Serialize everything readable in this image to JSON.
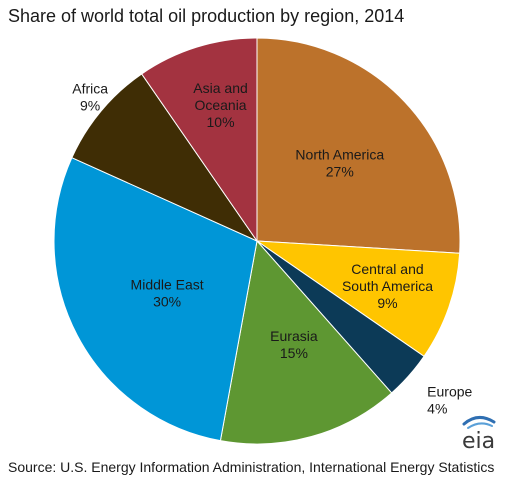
{
  "title": "Share of world total oil production by region, 2014",
  "source": "Source: U.S. Energy Information Administration, International Energy Statistics",
  "logo": {
    "text": "eia",
    "icon": "eia-logo-icon"
  },
  "chart_data": {
    "type": "pie",
    "title": "Share of world total oil production by region, 2014",
    "unit": "%",
    "start": "12 o'clock",
    "direction": "clockwise",
    "slices": [
      {
        "label": [
          "North America"
        ],
        "value": 27,
        "value_label": "27%",
        "color": "#BC722B"
      },
      {
        "label": [
          "Central and",
          "South America"
        ],
        "value": 9,
        "value_label": "9%",
        "color": "#FFC500"
      },
      {
        "label": [
          "Europe"
        ],
        "value": 4,
        "value_label": "4%",
        "color": "#0C3A57"
      },
      {
        "label": [
          "Eurasia"
        ],
        "value": 15,
        "value_label": "15%",
        "color": "#5E9732"
      },
      {
        "label": [
          "Middle East"
        ],
        "value": 30,
        "value_label": "30%",
        "color": "#0096D7"
      },
      {
        "label": [
          "Africa"
        ],
        "value": 9,
        "value_label": "9%",
        "color": "#3F2D05"
      },
      {
        "label": [
          "Asia and",
          "Oceania"
        ],
        "value": 10,
        "value_label": "10%",
        "color": "#A33340"
      }
    ]
  }
}
